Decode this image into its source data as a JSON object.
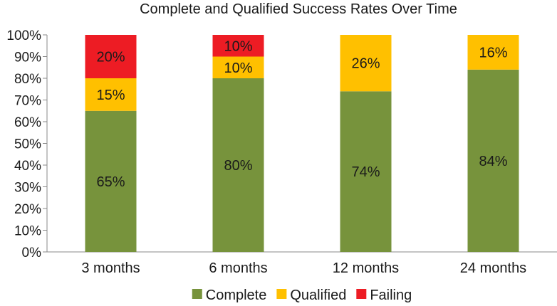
{
  "chart_data": {
    "type": "bar",
    "stacked": true,
    "title": "Complete and Qualified Success Rates Over Time",
    "xlabel": "",
    "ylabel": "",
    "categories": [
      "3 months",
      "6 months",
      "12 months",
      "24 months"
    ],
    "series": [
      {
        "name": "Complete",
        "color": "#77933c",
        "values": [
          65,
          80,
          74,
          84
        ],
        "labels": [
          "65%",
          "80%",
          "74%",
          "84%"
        ]
      },
      {
        "name": "Qualified",
        "color": "#ffc000",
        "values": [
          15,
          10,
          26,
          16
        ],
        "labels": [
          "15%",
          "10%",
          "26%",
          "16%"
        ]
      },
      {
        "name": "Failing",
        "color": "#ed1c24",
        "values": [
          20,
          10,
          0,
          0
        ],
        "labels": [
          "20%",
          "10%",
          "",
          ""
        ]
      }
    ],
    "yticks": [
      "0%",
      "10%",
      "20%",
      "30%",
      "40%",
      "50%",
      "60%",
      "70%",
      "80%",
      "90%",
      "100%"
    ],
    "ylim": [
      0,
      100
    ],
    "grid": false,
    "legend_position": "bottom"
  }
}
